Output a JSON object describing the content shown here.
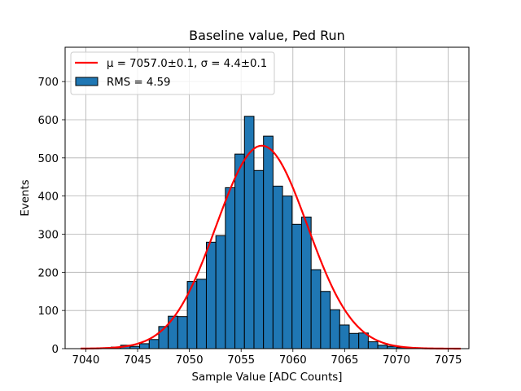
{
  "chart_data": {
    "type": "histogram",
    "title": "Baseline value, Ped Run",
    "xlabel": "Sample Value [ADC Counts]",
    "ylabel": "Events",
    "xlim": [
      7038,
      7077
    ],
    "ylim": [
      0,
      790
    ],
    "xticks": [
      7040,
      7045,
      7050,
      7055,
      7060,
      7065,
      7070,
      7075
    ],
    "yticks": [
      0,
      100,
      200,
      300,
      400,
      500,
      600,
      700
    ],
    "grid": true,
    "bar_color": "#1f77b4",
    "fit_color": "#ff0000",
    "bins": [
      {
        "x": 7039.68,
        "value": 0
      },
      {
        "x": 7040.6,
        "value": 1
      },
      {
        "x": 7041.52,
        "value": 2
      },
      {
        "x": 7042.44,
        "value": 4
      },
      {
        "x": 7043.36,
        "value": 9
      },
      {
        "x": 7044.28,
        "value": 6
      },
      {
        "x": 7045.2,
        "value": 13
      },
      {
        "x": 7046.12,
        "value": 24
      },
      {
        "x": 7047.04,
        "value": 58
      },
      {
        "x": 7047.96,
        "value": 85
      },
      {
        "x": 7048.88,
        "value": 84
      },
      {
        "x": 7049.8,
        "value": 176
      },
      {
        "x": 7050.72,
        "value": 182
      },
      {
        "x": 7051.64,
        "value": 279
      },
      {
        "x": 7052.56,
        "value": 296
      },
      {
        "x": 7053.48,
        "value": 422
      },
      {
        "x": 7054.4,
        "value": 510
      },
      {
        "x": 7055.32,
        "value": 609
      },
      {
        "x": 7056.24,
        "value": 467
      },
      {
        "x": 7057.16,
        "value": 557
      },
      {
        "x": 7058.08,
        "value": 426
      },
      {
        "x": 7059.0,
        "value": 400
      },
      {
        "x": 7059.92,
        "value": 326
      },
      {
        "x": 7060.84,
        "value": 345
      },
      {
        "x": 7061.76,
        "value": 207
      },
      {
        "x": 7062.68,
        "value": 150
      },
      {
        "x": 7063.6,
        "value": 102
      },
      {
        "x": 7064.52,
        "value": 62
      },
      {
        "x": 7065.44,
        "value": 40
      },
      {
        "x": 7066.36,
        "value": 41
      },
      {
        "x": 7067.28,
        "value": 18
      },
      {
        "x": 7068.2,
        "value": 9
      },
      {
        "x": 7069.12,
        "value": 6
      },
      {
        "x": 7070.04,
        "value": 3
      },
      {
        "x": 7070.96,
        "value": 2
      },
      {
        "x": 7071.88,
        "value": 1
      },
      {
        "x": 7072.8,
        "value": 1
      },
      {
        "x": 7073.72,
        "value": 0
      },
      {
        "x": 7074.64,
        "value": 0
      }
    ],
    "bin_width": 0.92,
    "fit": {
      "type": "gaussian",
      "mu": 7057.0,
      "sigma": 4.4,
      "amplitude": 532,
      "x_range": [
        7039.5,
        7076.2
      ]
    },
    "legend": {
      "location": "upper left",
      "entries": [
        {
          "label": "μ = 7057.0±0.1, σ = 4.4±0.1",
          "kind": "line"
        },
        {
          "label": "RMS = 4.59",
          "kind": "patch"
        }
      ]
    }
  }
}
